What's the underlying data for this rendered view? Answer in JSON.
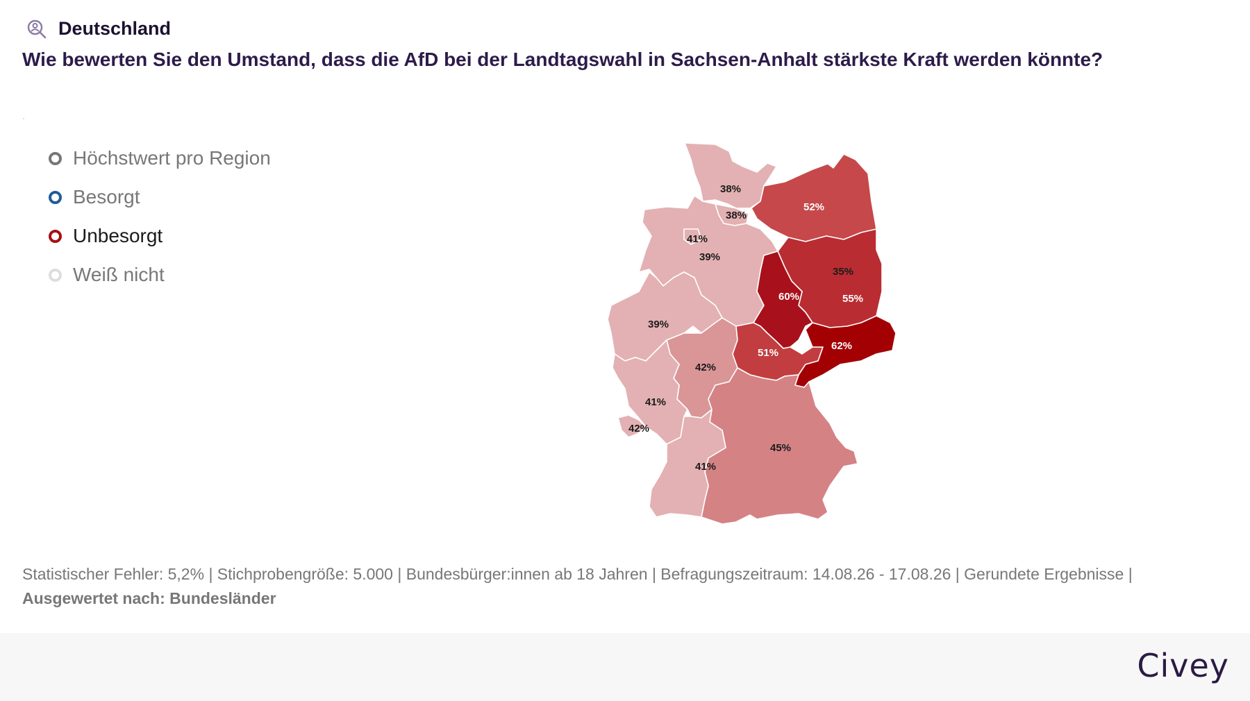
{
  "header": {
    "region": "Deutschland",
    "question": "Wie bewerten Sie den Umstand, dass die AfD bei der Landtagswahl in Sachsen-Anhalt stärkste Kraft werden könnte?"
  },
  "legend": [
    {
      "label": "Höchstwert pro Region",
      "color": "#777777",
      "active": false
    },
    {
      "label": "Besorgt",
      "color": "#1f5c99",
      "active": false
    },
    {
      "label": "Unbesorgt",
      "color": "#a50f15",
      "active": true
    },
    {
      "label": "Weiß nicht",
      "color": "#dddddd",
      "active": false
    }
  ],
  "map": {
    "selected_answer": "Unbesorgt",
    "regions": [
      {
        "name": "Schleswig-Holstein",
        "value": "38%"
      },
      {
        "name": "Hamburg",
        "value": "38%"
      },
      {
        "name": "Mecklenburg-Vorpommern",
        "value": "52%"
      },
      {
        "name": "Bremen",
        "value": "41%"
      },
      {
        "name": "Niedersachsen",
        "value": "39%"
      },
      {
        "name": "Berlin",
        "value": "35%"
      },
      {
        "name": "Brandenburg",
        "value": "55%"
      },
      {
        "name": "Sachsen-Anhalt",
        "value": "60%"
      },
      {
        "name": "Nordrhein-Westfalen",
        "value": "39%"
      },
      {
        "name": "Sachsen",
        "value": "62%"
      },
      {
        "name": "Thüringen",
        "value": "51%"
      },
      {
        "name": "Hessen",
        "value": "42%"
      },
      {
        "name": "Rheinland-Pfalz",
        "value": "41%"
      },
      {
        "name": "Saarland",
        "value": "42%"
      },
      {
        "name": "Bayern",
        "value": "45%"
      },
      {
        "name": "Baden-Württemberg",
        "value": "41%"
      }
    ]
  },
  "footnote": {
    "text": "Statistischer Fehler: 5,2% | Stichprobengröße: 5.000 | Bundesbürger:innen ab 18 Jahren | Befragungszeitraum: 14.08.26 - 17.08.26 | Gerundete Ergebnisse |",
    "evaluated": "Ausgewertet nach: Bundesländer"
  },
  "footer": {
    "brand": "Civey"
  },
  "colors": {
    "accent": "#2d1b4a",
    "icon": "#8a7aa6"
  }
}
